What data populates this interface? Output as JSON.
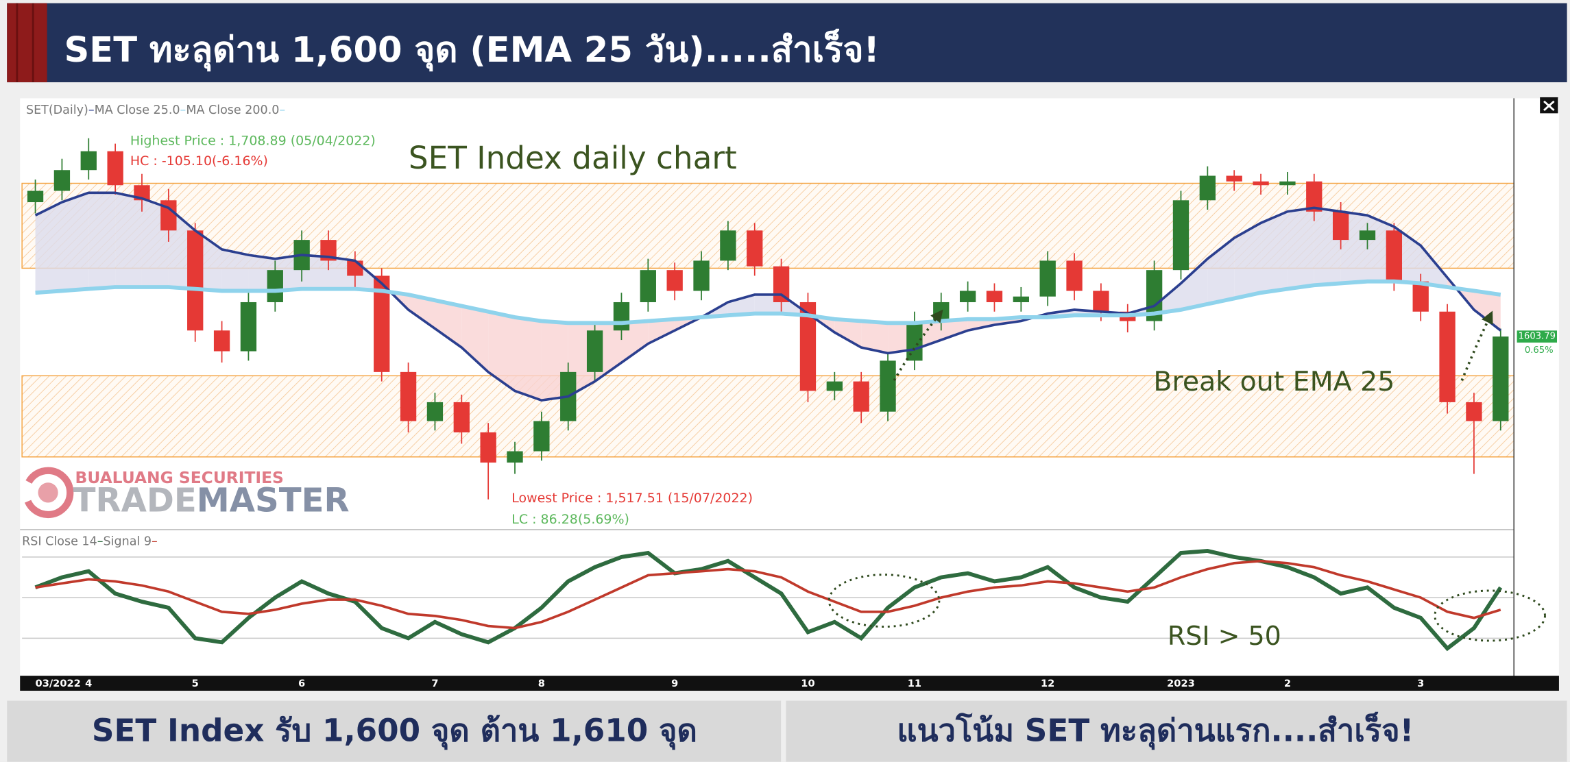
{
  "header": {
    "title": "SET ทะลุด่าน 1,600 จุด (EMA 25 วัน).....สำเร็จ!"
  },
  "footer": {
    "left": "SET Index รับ 1,600 จุด ต้าน 1,610 จุด",
    "right": "แนวโน้ม SET ทะลุด่านแรก....สำเร็จ!"
  },
  "logo": {
    "company": "BUALUANG SECURITIES",
    "brand_a": "TRADE",
    "brand_b": "MASTER"
  },
  "chart_data": [
    {
      "type": "candlestick",
      "symbol": "SET(Daily)",
      "title": "SET Index daily chart",
      "annotations": {
        "highest": "Highest Price : 1,708.89 (05/04/2022)",
        "hc": "HC : -105.10(-6.16%)",
        "lowest": "Lowest Price : 1,517.51 (15/07/2022)",
        "lc": "LC : 86.28(5.69%)",
        "breakout": "Break out EMA 25",
        "change": "0.65%"
      },
      "categories": [
        "03/2022",
        null,
        "4",
        null,
        null,
        null,
        "5",
        null,
        null,
        null,
        "6",
        null,
        null,
        null,
        null,
        "7",
        null,
        null,
        null,
        "8",
        null,
        null,
        null,
        null,
        "9",
        null,
        null,
        null,
        null,
        "10",
        null,
        null,
        null,
        "11",
        null,
        null,
        null,
        null,
        "12",
        null,
        null,
        null,
        null,
        "2023",
        null,
        null,
        null,
        "2",
        null,
        null,
        null,
        null,
        "3",
        null,
        null,
        null
      ],
      "open": [
        1675,
        1681,
        1692,
        1702,
        1684,
        1676,
        1660,
        1607,
        1596,
        1622,
        1639,
        1655,
        1644,
        1636,
        1585,
        1559,
        1569,
        1553,
        1537,
        1543,
        1559,
        1585,
        1607,
        1622,
        1639,
        1628,
        1644,
        1660,
        1641,
        1622,
        1575,
        1580,
        1564,
        1591,
        1612,
        1622,
        1628,
        1622,
        1625,
        1644,
        1628,
        1617,
        1612,
        1639,
        1676,
        1689,
        1686,
        1684,
        1686,
        1670,
        1655,
        1660,
        1633,
        1617,
        1569,
        1559
      ],
      "high": [
        1687,
        1698,
        1708.89,
        1706,
        1690,
        1682,
        1664,
        1612,
        1627,
        1644,
        1660,
        1660,
        1649,
        1640,
        1590,
        1574,
        1573,
        1558,
        1548,
        1564,
        1590,
        1612,
        1627,
        1645,
        1643,
        1649,
        1665,
        1664,
        1645,
        1627,
        1585,
        1585,
        1595,
        1617,
        1627,
        1633,
        1632,
        1630,
        1649,
        1648,
        1632,
        1621,
        1644,
        1681,
        1694,
        1692,
        1690,
        1691,
        1690,
        1675,
        1664,
        1664,
        1637,
        1621,
        1574,
        1608
      ],
      "low": [
        1669,
        1676,
        1687,
        1679,
        1670,
        1654,
        1601,
        1590,
        1591,
        1617,
        1633,
        1639,
        1630,
        1580,
        1553,
        1554,
        1547,
        1517.51,
        1531,
        1538,
        1554,
        1580,
        1602,
        1617,
        1623,
        1623,
        1639,
        1636,
        1617,
        1569,
        1570,
        1558,
        1559,
        1586,
        1607,
        1617,
        1617,
        1617,
        1620,
        1623,
        1612,
        1606,
        1607,
        1634,
        1671,
        1681,
        1679,
        1679,
        1665,
        1650,
        1650,
        1628,
        1612,
        1563,
        1531,
        1554
      ],
      "close": [
        1681,
        1692,
        1702,
        1684,
        1676,
        1660,
        1607,
        1596,
        1622,
        1639,
        1655,
        1644,
        1636,
        1585,
        1559,
        1569,
        1553,
        1537,
        1543,
        1559,
        1585,
        1607,
        1622,
        1639,
        1628,
        1644,
        1660,
        1641,
        1622,
        1575,
        1580,
        1564,
        1591,
        1612,
        1622,
        1628,
        1622,
        1625,
        1644,
        1628,
        1617,
        1612,
        1639,
        1676,
        1689,
        1686,
        1684,
        1686,
        1670,
        1655,
        1660,
        1633,
        1617,
        1569,
        1559,
        1603.79
      ],
      "up_color": "#2e7d32",
      "down_color": "#e53935",
      "series": [
        {
          "name": "MA Close 25.0",
          "color": "#2b3f8f",
          "values": [
            1668,
            1675,
            1680,
            1680,
            1677,
            1672,
            1660,
            1650,
            1647,
            1645,
            1647,
            1646,
            1644,
            1632,
            1618,
            1608,
            1598,
            1585,
            1575,
            1570,
            1572,
            1580,
            1590,
            1600,
            1607,
            1614,
            1622,
            1626,
            1626,
            1616,
            1606,
            1598,
            1595,
            1597,
            1602,
            1607,
            1610,
            1612,
            1616,
            1618,
            1617,
            1616,
            1620,
            1632,
            1645,
            1656,
            1664,
            1670,
            1672,
            1670,
            1668,
            1662,
            1652,
            1635,
            1618,
            1607
          ]
        },
        {
          "name": "MA Close 200.0",
          "color": "#8fd3ec",
          "values": [
            1627,
            1628,
            1629,
            1630,
            1630,
            1630,
            1629,
            1628,
            1628,
            1628,
            1629,
            1629,
            1629,
            1628,
            1626,
            1623,
            1620,
            1617,
            1614,
            1612,
            1611,
            1611,
            1611,
            1612,
            1613,
            1614,
            1615,
            1616,
            1616,
            1615,
            1613,
            1612,
            1611,
            1611,
            1612,
            1613,
            1613,
            1614,
            1614,
            1615,
            1615,
            1615,
            1616,
            1618,
            1621,
            1624,
            1627,
            1629,
            1631,
            1632,
            1633,
            1633,
            1632,
            1630,
            1628,
            1626
          ]
        }
      ],
      "zones": [
        [
          1640,
          1685
        ],
        [
          1540,
          1583
        ]
      ],
      "zone_color": "#f4a341",
      "ylim": [
        1502,
        1729
      ]
    },
    {
      "type": "line",
      "annotation": "RSI > 50",
      "series": [
        {
          "name": "RSI Close 14",
          "color": "#2e6b3f",
          "values": [
            55,
            60,
            63,
            52,
            48,
            45,
            30,
            28,
            40,
            50,
            58,
            52,
            48,
            35,
            30,
            38,
            32,
            28,
            35,
            45,
            58,
            65,
            70,
            72,
            62,
            64,
            68,
            60,
            52,
            33,
            38,
            30,
            45,
            55,
            60,
            62,
            58,
            60,
            65,
            55,
            50,
            48,
            60,
            72,
            73,
            70,
            68,
            65,
            60,
            52,
            55,
            45,
            40,
            25,
            35,
            55
          ]
        },
        {
          "name": "Signal 9",
          "color": "#c0392b",
          "values": [
            55,
            57,
            59,
            58,
            56,
            53,
            48,
            43,
            42,
            44,
            47,
            49,
            49,
            46,
            42,
            41,
            39,
            36,
            35,
            38,
            43,
            49,
            55,
            61,
            62,
            63,
            64,
            63,
            60,
            53,
            48,
            43,
            43,
            46,
            50,
            53,
            55,
            56,
            58,
            57,
            55,
            53,
            55,
            60,
            64,
            67,
            68,
            67,
            65,
            61,
            58,
            54,
            50,
            43,
            40,
            44
          ]
        }
      ],
      "ref_lines": [
        30,
        50,
        70
      ],
      "ylim": [
        13,
        83
      ]
    }
  ]
}
